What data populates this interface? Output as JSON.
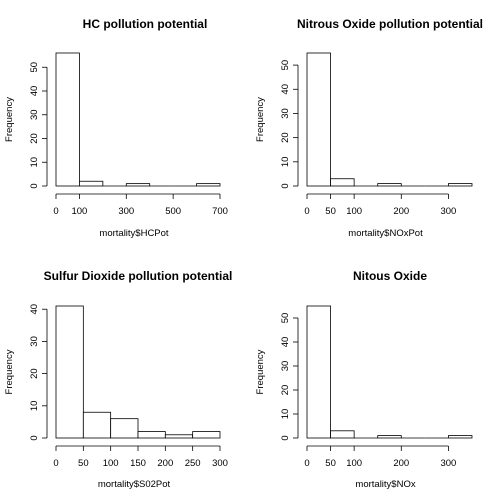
{
  "chart_data": [
    {
      "type": "bar",
      "title": "HC pollution potential",
      "xlabel": "mortality$HCPot",
      "ylabel": "Frequency",
      "bin_edges": [
        0,
        100,
        200,
        300,
        400,
        500,
        600,
        700
      ],
      "values": [
        56,
        2,
        0,
        1,
        0,
        0,
        1
      ],
      "xlim": [
        0,
        700
      ],
      "ylim": [
        0,
        56
      ],
      "xticks": [
        0,
        100,
        300,
        500,
        700
      ],
      "yticks": [
        0,
        10,
        20,
        30,
        40,
        50
      ],
      "grid": false
    },
    {
      "type": "bar",
      "title": "Nitrous Oxide pollution potential",
      "xlabel": "mortality$NOxPot",
      "ylabel": "Frequency",
      "bin_edges": [
        0,
        50,
        100,
        150,
        200,
        250,
        300,
        350
      ],
      "values": [
        55,
        3,
        0,
        1,
        0,
        0,
        1
      ],
      "xlim": [
        0,
        350
      ],
      "ylim": [
        0,
        55
      ],
      "xticks": [
        0,
        50,
        100,
        200,
        300
      ],
      "yticks": [
        0,
        10,
        20,
        30,
        40,
        50
      ],
      "grid": false
    },
    {
      "type": "bar",
      "title": "Sulfur Dioxide pollution potential",
      "xlabel": "mortality$S02Pot",
      "ylabel": "Frequency",
      "bin_edges": [
        0,
        50,
        100,
        150,
        200,
        250,
        300
      ],
      "values": [
        41,
        8,
        6,
        2,
        1,
        2
      ],
      "xlim": [
        0,
        300
      ],
      "ylim": [
        0,
        41
      ],
      "xticks": [
        0,
        50,
        100,
        150,
        200,
        250,
        300
      ],
      "yticks": [
        0,
        10,
        20,
        30,
        40
      ],
      "grid": false
    },
    {
      "type": "bar",
      "title": "Nitous Oxide",
      "xlabel": "mortality$NOx",
      "ylabel": "Frequency",
      "bin_edges": [
        0,
        50,
        100,
        150,
        200,
        250,
        300,
        350
      ],
      "values": [
        55,
        3,
        0,
        1,
        0,
        0,
        1
      ],
      "xlim": [
        0,
        350
      ],
      "ylim": [
        0,
        55
      ],
      "xticks": [
        0,
        50,
        100,
        200,
        300
      ],
      "yticks": [
        0,
        10,
        20,
        30,
        40,
        50
      ],
      "grid": false
    }
  ]
}
